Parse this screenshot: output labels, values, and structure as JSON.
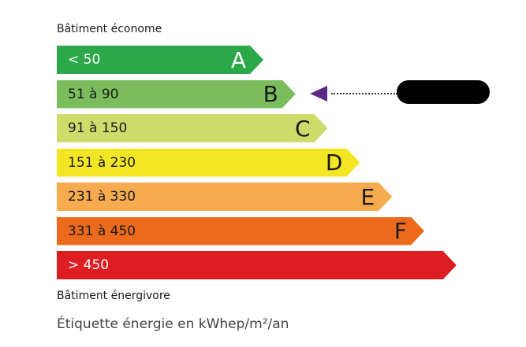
{
  "top_label": "Bâtiment économe",
  "bottom_label": "Bâtiment énergivore",
  "footer": "Étiquette énergie en kWhep/m²/an",
  "classes": [
    {
      "range": "< 50",
      "letter": "A",
      "color": "#2aa84a",
      "text_color": "#ffffff"
    },
    {
      "range": "51 à 90",
      "letter": "B",
      "color": "#7bbd5c",
      "text_color": "#1a1a1a"
    },
    {
      "range": "91 à 150",
      "letter": "C",
      "color": "#cddc6a",
      "text_color": "#1a1a1a"
    },
    {
      "range": "151 à 230",
      "letter": "D",
      "color": "#f3e625",
      "text_color": "#1a1a1a"
    },
    {
      "range": "231 à 330",
      "letter": "E",
      "color": "#f5ab4e",
      "text_color": "#1a1a1a"
    },
    {
      "range": "331 à 450",
      "letter": "F",
      "color": "#ec6a1c",
      "text_color": "#1a1a1a"
    },
    {
      "range": "> 450",
      "letter": "",
      "color": "#dd1d21",
      "text_color": "#ffffff"
    }
  ],
  "indicator": {
    "class": "B",
    "color": "#5b2a86",
    "value_redacted": true
  }
}
